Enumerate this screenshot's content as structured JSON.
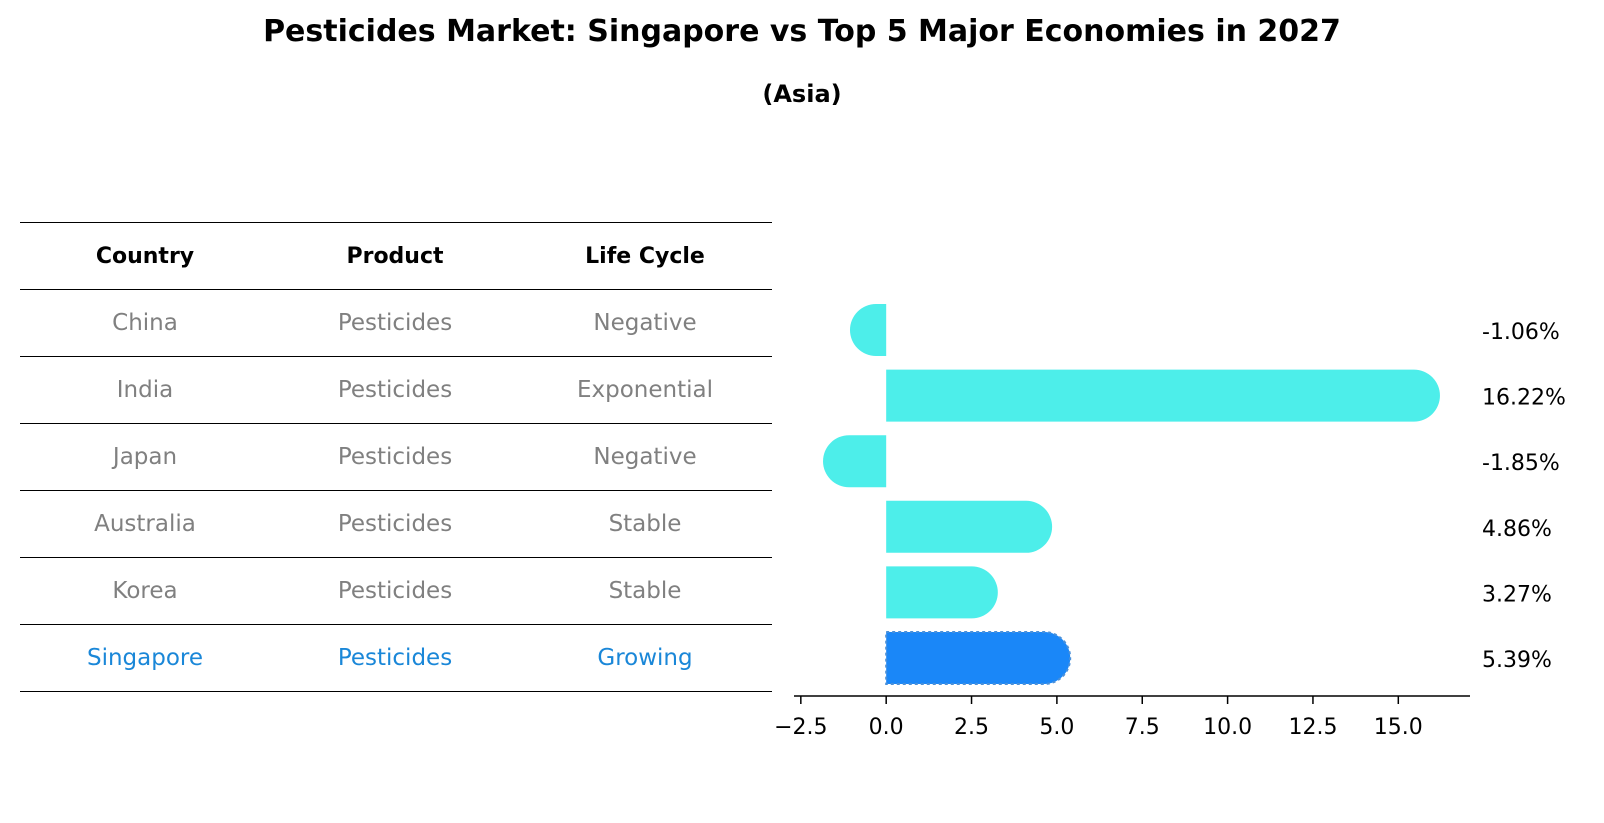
{
  "title": "Pesticides Market: Singapore vs Top 5 Major Economies in 2027",
  "subtitle": "(Asia)",
  "table": {
    "headers": [
      "Country",
      "Product",
      "Life Cycle"
    ],
    "rows": [
      [
        "China",
        "Pesticides",
        "Negative"
      ],
      [
        "India",
        "Pesticides",
        "Exponential"
      ],
      [
        "Japan",
        "Pesticides",
        "Negative"
      ],
      [
        "Australia",
        "Pesticides",
        "Stable"
      ],
      [
        "Korea",
        "Pesticides",
        "Stable"
      ],
      [
        "Singapore",
        "Pesticides",
        "Growing"
      ]
    ]
  },
  "chart_data": {
    "type": "bar",
    "orientation": "horizontal",
    "categories": [
      "China",
      "India",
      "Japan",
      "Australia",
      "Korea",
      "Singapore"
    ],
    "values": [
      -1.06,
      16.22,
      -1.85,
      4.86,
      3.27,
      5.39
    ],
    "value_labels": [
      "-1.06%",
      "16.22%",
      "-1.85%",
      "4.86%",
      "3.27%",
      "5.39%"
    ],
    "highlight": "Singapore",
    "colors": {
      "default": "#4deeea",
      "highlight": "#1a87f8"
    },
    "xlim": [
      -2.7,
      17.1
    ],
    "xticks": [
      -2.5,
      0.0,
      2.5,
      5.0,
      7.5,
      10.0,
      12.5,
      15.0
    ],
    "xtick_labels": [
      "−2.5",
      "0.0",
      "2.5",
      "5.0",
      "7.5",
      "10.0",
      "12.5",
      "15.0"
    ]
  }
}
